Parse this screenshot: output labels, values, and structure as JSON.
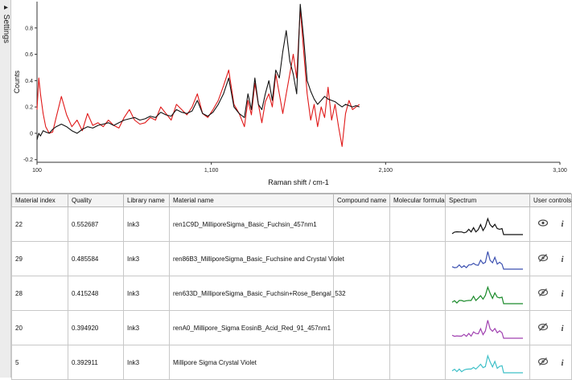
{
  "sidebar": {
    "label": "▸ Settings"
  },
  "chart_data": {
    "type": "line",
    "xlabel": "Raman shift / cm-1",
    "ylabel": "Counts",
    "x_ticks": [
      "100",
      "1,100",
      "2,100",
      "3,100"
    ],
    "y_ticks": [
      "-0.2",
      "0",
      "0.2",
      "0.4",
      "0.6",
      "0.8"
    ],
    "xlim": [
      100,
      3100
    ],
    "ylim": [
      -0.22,
      1.0
    ],
    "series": [
      {
        "color": "#e01818",
        "x": [
          100,
          110,
          120,
          135,
          150,
          170,
          190,
          210,
          240,
          270,
          300,
          330,
          360,
          390,
          420,
          450,
          480,
          510,
          540,
          570,
          600,
          630,
          660,
          690,
          720,
          750,
          780,
          810,
          840,
          870,
          900,
          930,
          960,
          990,
          1020,
          1050,
          1080,
          1110,
          1140,
          1170,
          1200,
          1230,
          1260,
          1290,
          1310,
          1330,
          1350,
          1370,
          1390,
          1410,
          1430,
          1450,
          1470,
          1490,
          1510,
          1530,
          1550,
          1570,
          1590,
          1610,
          1630,
          1650,
          1670,
          1690,
          1710,
          1730,
          1750,
          1770,
          1790,
          1810,
          1830,
          1850,
          1870,
          1890,
          1910,
          1930,
          1950
        ],
        "values": [
          0.18,
          0.42,
          0.3,
          0.15,
          0.05,
          0.0,
          0.01,
          0.12,
          0.28,
          0.14,
          0.05,
          0.1,
          0.02,
          0.15,
          0.06,
          0.08,
          0.05,
          0.1,
          0.06,
          0.04,
          0.12,
          0.18,
          0.1,
          0.07,
          0.08,
          0.12,
          0.1,
          0.2,
          0.15,
          0.1,
          0.22,
          0.18,
          0.14,
          0.2,
          0.3,
          0.15,
          0.12,
          0.18,
          0.25,
          0.36,
          0.48,
          0.22,
          0.15,
          0.05,
          0.25,
          0.14,
          0.38,
          0.22,
          0.08,
          0.24,
          0.3,
          0.2,
          0.45,
          0.3,
          0.15,
          0.3,
          0.45,
          0.6,
          0.42,
          0.95,
          0.62,
          0.3,
          0.1,
          0.22,
          0.05,
          0.2,
          0.12,
          0.35,
          0.1,
          0.22,
          0.05,
          -0.1,
          0.15,
          0.25,
          0.18,
          0.2,
          0.22
        ]
      },
      {
        "color": "#111111",
        "x": [
          100,
          110,
          120,
          135,
          150,
          170,
          190,
          210,
          240,
          270,
          300,
          330,
          360,
          390,
          420,
          450,
          480,
          510,
          540,
          570,
          600,
          630,
          660,
          690,
          720,
          750,
          780,
          810,
          840,
          870,
          900,
          930,
          960,
          990,
          1020,
          1050,
          1080,
          1110,
          1140,
          1170,
          1200,
          1230,
          1260,
          1290,
          1310,
          1330,
          1350,
          1370,
          1390,
          1410,
          1430,
          1450,
          1470,
          1490,
          1510,
          1530,
          1550,
          1570,
          1590,
          1610,
          1630,
          1650,
          1670,
          1690,
          1710,
          1730,
          1750,
          1770,
          1790,
          1810,
          1830,
          1850,
          1870,
          1890,
          1910,
          1930,
          1950
        ],
        "values": [
          -0.05,
          0.0,
          -0.02,
          0.02,
          0.01,
          0.0,
          0.03,
          0.05,
          0.07,
          0.05,
          0.02,
          0.0,
          0.03,
          0.05,
          0.04,
          0.06,
          0.07,
          0.08,
          0.06,
          0.08,
          0.1,
          0.11,
          0.12,
          0.1,
          0.11,
          0.13,
          0.12,
          0.16,
          0.14,
          0.13,
          0.18,
          0.16,
          0.15,
          0.17,
          0.25,
          0.15,
          0.13,
          0.16,
          0.22,
          0.3,
          0.42,
          0.2,
          0.15,
          0.12,
          0.3,
          0.18,
          0.42,
          0.22,
          0.18,
          0.3,
          0.4,
          0.25,
          0.48,
          0.42,
          0.62,
          0.78,
          0.55,
          0.45,
          0.3,
          0.98,
          0.72,
          0.4,
          0.32,
          0.26,
          0.22,
          0.25,
          0.28,
          0.26,
          0.25,
          0.24,
          0.22,
          0.2,
          0.22,
          0.21,
          0.2,
          0.21,
          0.2
        ]
      }
    ]
  },
  "table": {
    "columns": [
      "Material index",
      "Quality",
      "Library name",
      "Material name",
      "Compound name",
      "Molecular formula",
      "Spectrum",
      "User controls"
    ],
    "rows": [
      {
        "index": "22",
        "quality": "0.552687",
        "library": "Ink3",
        "material": "ren1C9D_MilliporeSigma_Basic_Fuchsin_457nm1",
        "compound": "",
        "formula": "",
        "spectrum_color": "#111111",
        "visible": true
      },
      {
        "index": "29",
        "quality": "0.485584",
        "library": "Ink3",
        "material": "ren86B3_MilliporeSigma_Basic_Fuchsine and Crystal Violet",
        "compound": "",
        "formula": "",
        "spectrum_color": "#3a4fb0",
        "visible": false
      },
      {
        "index": "28",
        "quality": "0.415248",
        "library": "Ink3",
        "material": "ren633D_MilliporeSigma_Basic_Fuchsin+Rose_Bengal_532",
        "compound": "",
        "formula": "",
        "spectrum_color": "#1a8a2a",
        "visible": false
      },
      {
        "index": "20",
        "quality": "0.394920",
        "library": "Ink3",
        "material": "renA0_Millipore_Sigma EosinB_Acid_Red_91_457nm1",
        "compound": "",
        "formula": "",
        "spectrum_color": "#a040b0",
        "visible": false
      },
      {
        "index": "5",
        "quality": "0.392911",
        "library": "Ink3",
        "material": "Millipore Sigma Crystal Violet",
        "compound": "",
        "formula": "",
        "spectrum_color": "#3ec0c8",
        "visible": false
      }
    ],
    "icons": {
      "visible": "eye-icon",
      "hidden": "eye-slash-icon",
      "info": "info-icon"
    }
  }
}
